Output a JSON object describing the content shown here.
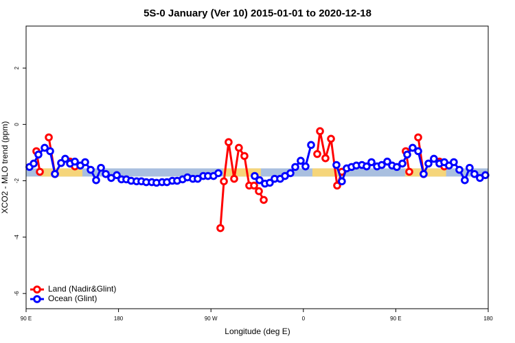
{
  "chart_data": {
    "type": "line",
    "title": "5S-0 January (Ver 10)   2015-01-01 to 2020-12-18",
    "x_label": "Longitude (deg E)",
    "y_label": "XCO2 - MLO trend (ppm)",
    "xlim": [
      90,
      540
    ],
    "ylim": [
      -6.54,
      3.49
    ],
    "xticks": [
      {
        "value": 90,
        "label": "90 E"
      },
      180,
      {
        "value": 270,
        "label": "90 W"
      },
      {
        "value": 360,
        "label": "0"
      },
      {
        "value": 450,
        "label": "90 E"
      },
      {
        "value": 540,
        "label": "180"
      }
    ],
    "yticks": [
      -6,
      -4,
      -2,
      0,
      2
    ],
    "legend": "bottom-left",
    "band": {
      "range": [
        -1.56,
        -1.85
      ],
      "color": "#a9bfdf",
      "land_color": "#f5d57a",
      "land": [
        [
          104.7,
          144.8
        ],
        [
          281.9,
          318.7
        ],
        [
          368.8,
          398.9
        ],
        [
          459,
          499
        ]
      ]
    },
    "series": [
      {
        "name": "Land (Nadir&Glint)",
        "color": "#ff0000",
        "x": [
          100.0,
          103.4,
          null,
          112.1,
          118.1,
          null,
          132.8,
          137.5,
          null,
          279.2,
          282.6,
          287.2,
          292.6,
          297.2,
          302.6,
          307.3,
          312.0,
          316.7,
          321.4,
          null,
          373.5,
          376.2,
          381.5,
          386.9,
          392.9,
          397.5,
          null,
          459.7,
          463.1,
          null,
          471.8,
          477.1,
          null,
          492.5,
          497.2
        ],
        "values": [
          -0.95,
          -1.68,
          null,
          -0.46,
          -1.76,
          null,
          -1.32,
          -1.49,
          null,
          -3.68,
          -2.02,
          -0.63,
          -1.93,
          -0.83,
          -1.12,
          -2.17,
          -2.17,
          -2.37,
          -2.68,
          null,
          -1.05,
          -0.24,
          -1.2,
          -0.51,
          -2.17,
          -1.68,
          null,
          -0.95,
          -1.68,
          null,
          -0.46,
          -1.76,
          null,
          -1.32,
          -1.49
        ]
      },
      {
        "name": "Ocean (Glint)",
        "color": "#0000ff",
        "x": [
          93.3,
          97.4,
          102.0,
          108.1,
          113.4,
          118.1,
          124.1,
          128.1,
          132.8,
          137.5,
          142.8,
          147.5,
          152.9,
          158.2,
          162.9,
          167.6,
          172.9,
          178.3,
          182.9,
          187.6,
          192.3,
          197.6,
          202.3,
          207.0,
          212.4,
          217.0,
          222.4,
          227.1,
          232.4,
          237.1,
          242.4,
          247.1,
          252.4,
          257.1,
          262.5,
          267.1,
          272.5,
          277.2,
          null,
          312.6,
          317.3,
          322.6,
          327.3,
          332.0,
          337.4,
          342.1,
          347.4,
          352.1,
          357.4,
          362.1,
          367.5,
          null,
          392.2,
          397.5,
          402.2,
          406.9,
          411.6,
          417.0,
          421.6,
          426.3,
          431.7,
          436.3,
          441.7,
          446.4,
          451.0,
          456.4,
          461.1,
          466.4,
          471.8,
          477.1,
          481.8,
          487.1,
          492.5,
          497.2,
          501.8,
          506.5,
          511.9,
          517.2,
          521.9,
          526.6,
          531.9,
          537.2
        ],
        "values": [
          -1.51,
          -1.39,
          -1.07,
          -0.83,
          -0.95,
          -1.76,
          -1.37,
          -1.22,
          -1.39,
          -1.32,
          -1.46,
          -1.34,
          -1.61,
          -1.98,
          -1.54,
          -1.76,
          -1.9,
          -1.8,
          -1.95,
          -1.95,
          -2.0,
          -2.02,
          -2.02,
          -2.05,
          -2.05,
          -2.07,
          -2.05,
          -2.05,
          -2.0,
          -2.0,
          -1.95,
          -1.88,
          -1.93,
          -1.93,
          -1.83,
          -1.83,
          -1.83,
          -1.73,
          null,
          -1.83,
          -1.98,
          -2.1,
          -2.07,
          -1.93,
          -1.93,
          -1.83,
          -1.73,
          -1.51,
          -1.29,
          -1.49,
          -0.73,
          null,
          -1.44,
          -2.02,
          -1.56,
          -1.51,
          -1.46,
          -1.44,
          -1.49,
          -1.34,
          -1.49,
          -1.44,
          -1.32,
          -1.46,
          -1.51,
          -1.39,
          -1.07,
          -0.83,
          -0.95,
          -1.76,
          -1.39,
          -1.22,
          -1.39,
          -1.34,
          -1.46,
          -1.34,
          -1.61,
          -1.98,
          -1.54,
          -1.76,
          -1.9,
          -1.8
        ]
      }
    ]
  }
}
